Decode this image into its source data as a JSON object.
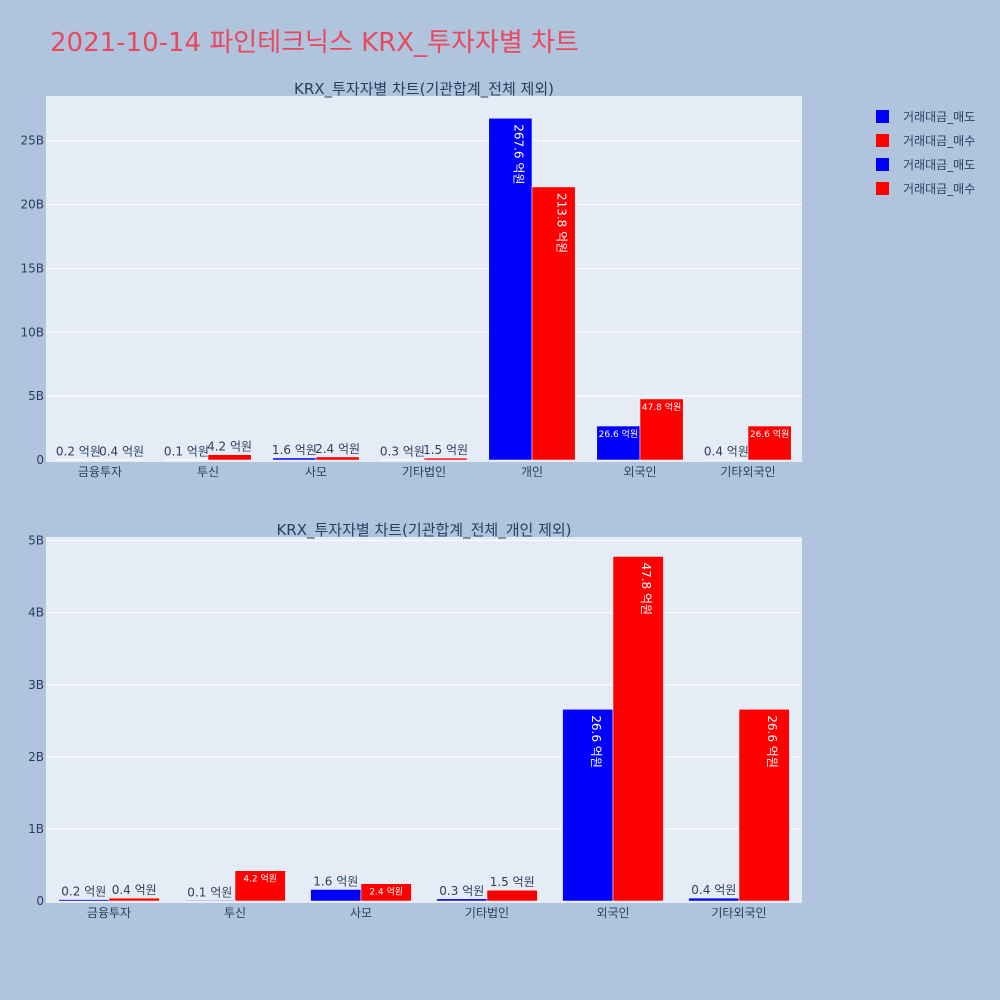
{
  "page_title": "2021-10-14 파인테크닉스 KRX_투자자별 차트",
  "colors": {
    "sell": "#0000ff",
    "buy": "#ff0000",
    "plot_bg": "#e5ecf6",
    "page_bg": "#b0c4de",
    "title": "#e8495f"
  },
  "legend": [
    {
      "label": "거래대금_매도",
      "color": "#0000ff"
    },
    {
      "label": "거래대금_매수",
      "color": "#ff0000"
    },
    {
      "label": "거래대금_매도",
      "color": "#0000ff"
    },
    {
      "label": "거래대금_매수",
      "color": "#ff0000"
    }
  ],
  "chart_data": [
    {
      "type": "bar",
      "title": "KRX_투자자별 차트(기관합계_전체 제외)",
      "categories": [
        "금융투자",
        "투신",
        "사모",
        "기타법인",
        "개인",
        "외국인",
        "기타외국인"
      ],
      "ylim": [
        0,
        28.5
      ],
      "yticks": [
        0,
        5,
        10,
        15,
        20,
        25
      ],
      "ytick_labels": [
        "0",
        "5B",
        "10B",
        "15B",
        "20B",
        "25B"
      ],
      "series": [
        {
          "name": "거래대금_매도",
          "color": "#0000ff",
          "values": [
            0.02,
            0.01,
            0.16,
            0.03,
            26.76,
            2.66,
            0.04
          ],
          "labels": [
            "0.2 억원",
            "0.1 억원",
            "1.6 억원",
            "0.3 억원",
            "267.6 억원",
            "26.6 억원",
            "0.4 억원"
          ]
        },
        {
          "name": "거래대금_매수",
          "color": "#ff0000",
          "values": [
            0.04,
            0.42,
            0.24,
            0.15,
            21.38,
            4.78,
            2.66
          ],
          "labels": [
            "0.4 억원",
            "4.2 억원",
            "2.4 억원",
            "1.5 억원",
            "213.8 억원",
            "47.8 억원",
            "26.6 억원"
          ]
        }
      ]
    },
    {
      "type": "bar",
      "title": "KRX_투자자별 차트(기관합계_전체_개인 제외)",
      "categories": [
        "금융투자",
        "투신",
        "사모",
        "기타법인",
        "외국인",
        "기타외국인"
      ],
      "ylim": [
        0,
        5.05
      ],
      "yticks": [
        0,
        1,
        2,
        3,
        4,
        5
      ],
      "ytick_labels": [
        "0",
        "1B",
        "2B",
        "3B",
        "4B",
        "5B"
      ],
      "series": [
        {
          "name": "거래대금_매도",
          "color": "#0000ff",
          "values": [
            0.02,
            0.01,
            0.16,
            0.03,
            2.66,
            0.04
          ],
          "labels": [
            "0.2 억원",
            "0.1 억원",
            "1.6 억원",
            "0.3 억원",
            "26.6 억원",
            "0.4 억원"
          ]
        },
        {
          "name": "거래대금_매수",
          "color": "#ff0000",
          "values": [
            0.04,
            0.42,
            0.24,
            0.15,
            4.78,
            2.66
          ],
          "labels": [
            "0.4 억원",
            "4.2 억원",
            "2.4 억원",
            "1.5 억원",
            "47.8 억원",
            "26.6 억원"
          ]
        }
      ]
    }
  ]
}
